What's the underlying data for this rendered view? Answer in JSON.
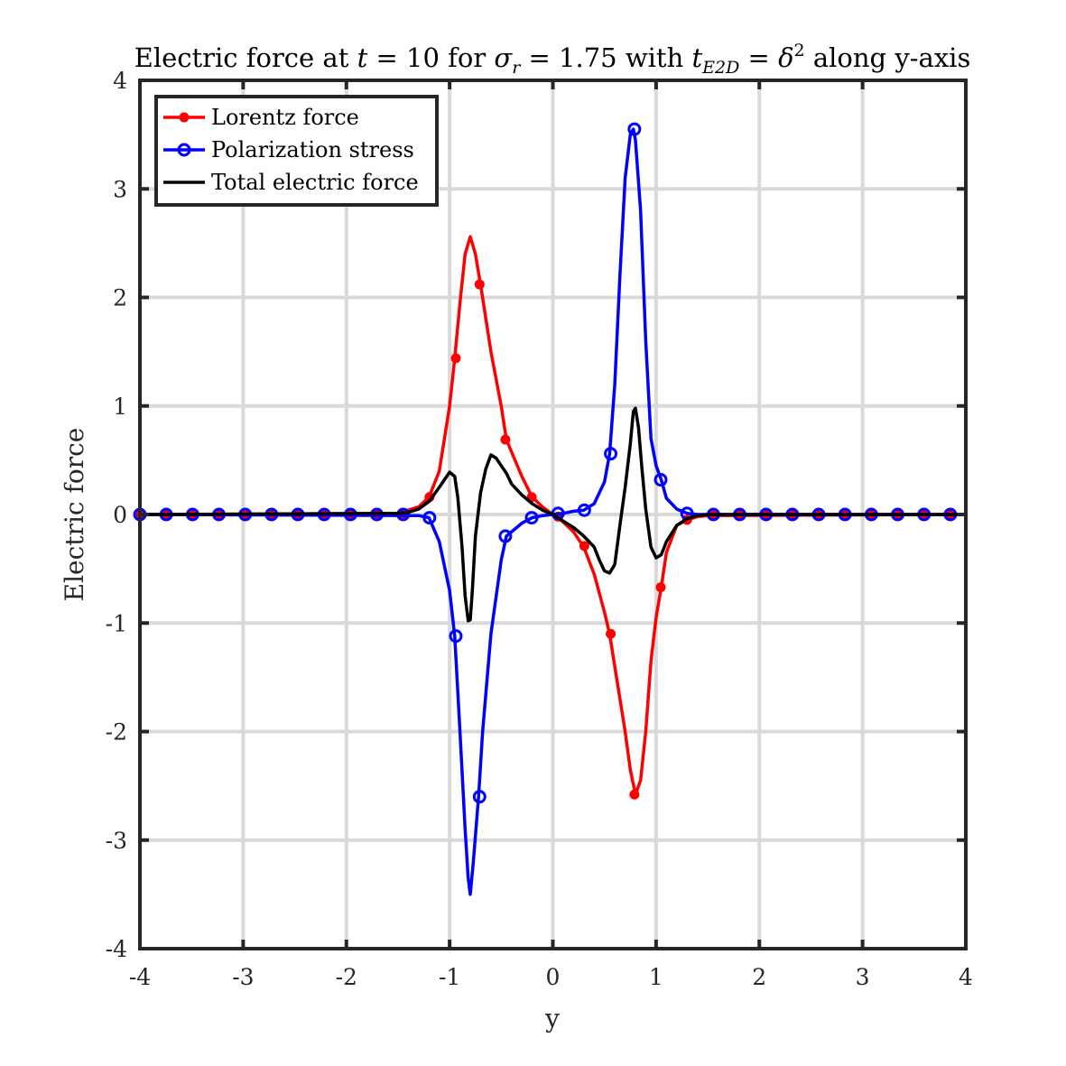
{
  "chart_data": {
    "type": "line",
    "title_parts": {
      "p1": "Electric force at ",
      "t": "t",
      "eq1": " = 10 for ",
      "sigma": "σ",
      "sigma_sub": "r",
      "eq2": " = 1.75 with ",
      "t2": "t",
      "t_sub": "E2D",
      "eq3": " = ",
      "delta": "δ",
      "delta_sup": "2",
      "p2": " along y-axis"
    },
    "xlabel": "y",
    "ylabel": "Electric force",
    "xlim": [
      -4,
      4
    ],
    "ylim": [
      -4,
      4
    ],
    "xticks": [
      -4,
      -3,
      -2,
      -1,
      0,
      1,
      2,
      3,
      4
    ],
    "yticks": [
      -4,
      -3,
      -2,
      -1,
      0,
      1,
      2,
      3,
      4
    ],
    "xtick_labels": [
      "-4",
      "-3",
      "-2",
      "-1",
      "0",
      "1",
      "2",
      "3",
      "4"
    ],
    "ytick_labels": [
      "-4",
      "-3",
      "-2",
      "-1",
      "0",
      "1",
      "2",
      "3",
      "4"
    ],
    "grid": true,
    "legend_position": "top-left",
    "series": [
      {
        "name": "Lorentz force",
        "color": "#ff0000",
        "marker": "dot",
        "x": [
          -4.0,
          -1.5,
          -1.3,
          -1.2,
          -1.1,
          -1.0,
          -0.95,
          -0.9,
          -0.85,
          -0.8,
          -0.75,
          -0.7,
          -0.6,
          -0.5,
          -0.45,
          -0.3,
          -0.2,
          -0.1,
          0.0,
          0.1,
          0.2,
          0.3,
          0.4,
          0.5,
          0.55,
          0.6,
          0.7,
          0.75,
          0.8,
          0.85,
          0.9,
          0.95,
          1.0,
          1.05,
          1.1,
          1.2,
          1.3,
          1.4,
          1.5,
          4.0
        ],
        "y": [
          0,
          0.01,
          0.07,
          0.16,
          0.4,
          1.0,
          1.44,
          1.95,
          2.4,
          2.56,
          2.4,
          2.12,
          1.5,
          1.0,
          0.69,
          0.35,
          0.16,
          0.07,
          0,
          -0.07,
          -0.16,
          -0.3,
          -0.55,
          -0.9,
          -1.1,
          -1.4,
          -2.0,
          -2.35,
          -2.58,
          -2.45,
          -2.0,
          -1.35,
          -0.95,
          -0.67,
          -0.35,
          -0.1,
          -0.05,
          -0.02,
          -0.01,
          0
        ],
        "marker_x": [
          -4.0,
          -3.745,
          -3.49,
          -3.235,
          -2.98,
          -2.725,
          -2.47,
          -2.215,
          -1.96,
          -1.705,
          -1.45,
          -1.195,
          -0.94,
          -0.71,
          -0.46,
          -0.205,
          0.05,
          0.305,
          0.56,
          0.79,
          1.045,
          1.3,
          1.555,
          1.81,
          2.065,
          2.32,
          2.575,
          2.83,
          3.085,
          3.34,
          3.595,
          3.85
        ],
        "marker_y": [
          0,
          0,
          0,
          0,
          0,
          0,
          0,
          0,
          0,
          0,
          0,
          0.16,
          1.44,
          2.12,
          0.69,
          0.16,
          -0.02,
          -0.29,
          -1.1,
          -2.58,
          -0.67,
          -0.05,
          0,
          0,
          0,
          0,
          0,
          0,
          0,
          0,
          0,
          0
        ]
      },
      {
        "name": "Polarization stress",
        "color": "#0000ff",
        "marker": "circle",
        "x": [
          -4.0,
          -1.3,
          -1.2,
          -1.1,
          -1.0,
          -0.95,
          -0.9,
          -0.85,
          -0.82,
          -0.8,
          -0.77,
          -0.72,
          -0.68,
          -0.6,
          -0.5,
          -0.45,
          -0.3,
          -0.2,
          -0.1,
          0.0,
          0.1,
          0.2,
          0.3,
          0.4,
          0.5,
          0.55,
          0.6,
          0.65,
          0.7,
          0.75,
          0.78,
          0.8,
          0.85,
          0.9,
          0.95,
          1.0,
          1.05,
          1.1,
          1.2,
          1.3,
          1.4,
          4.0
        ],
        "y": [
          0,
          -0.01,
          -0.03,
          -0.25,
          -0.7,
          -1.12,
          -2.0,
          -2.9,
          -3.35,
          -3.5,
          -3.2,
          -2.6,
          -2.0,
          -1.1,
          -0.42,
          -0.2,
          -0.08,
          -0.03,
          -0.01,
          0,
          0.01,
          0.03,
          0.04,
          0.1,
          0.3,
          0.56,
          1.2,
          2.2,
          3.1,
          3.5,
          3.55,
          3.45,
          2.8,
          1.6,
          0.7,
          0.45,
          0.32,
          0.15,
          0.05,
          0.01,
          0,
          0
        ],
        "marker_x": [
          -4.0,
          -3.745,
          -3.49,
          -3.235,
          -2.98,
          -2.725,
          -2.47,
          -2.215,
          -1.96,
          -1.705,
          -1.45,
          -1.195,
          -0.94,
          -0.71,
          -0.46,
          -0.205,
          0.05,
          0.305,
          0.56,
          0.79,
          1.045,
          1.3,
          1.555,
          1.81,
          2.065,
          2.32,
          2.575,
          2.83,
          3.085,
          3.34,
          3.595,
          3.85
        ],
        "marker_y": [
          0,
          0,
          0,
          0,
          0,
          0,
          0,
          0,
          0,
          0,
          0,
          -0.03,
          -1.12,
          -2.6,
          -0.2,
          -0.03,
          0.01,
          0.04,
          0.56,
          3.55,
          0.32,
          0.01,
          0,
          0,
          0,
          0,
          0,
          0,
          0,
          0,
          0,
          0
        ]
      },
      {
        "name": "Total electric force",
        "color": "#000000",
        "marker": "none",
        "x": [
          -4.0,
          -1.5,
          -1.4,
          -1.3,
          -1.2,
          -1.1,
          -1.0,
          -0.95,
          -0.92,
          -0.88,
          -0.85,
          -0.82,
          -0.8,
          -0.78,
          -0.75,
          -0.7,
          -0.65,
          -0.6,
          -0.55,
          -0.5,
          -0.45,
          -0.4,
          -0.3,
          -0.2,
          -0.1,
          0.0,
          0.1,
          0.2,
          0.3,
          0.4,
          0.45,
          0.5,
          0.55,
          0.6,
          0.65,
          0.7,
          0.75,
          0.78,
          0.8,
          0.83,
          0.86,
          0.9,
          0.95,
          1.0,
          1.05,
          1.1,
          1.2,
          1.3,
          1.4,
          1.5,
          4.0
        ],
        "y": [
          0,
          0.01,
          0.02,
          0.05,
          0.12,
          0.25,
          0.39,
          0.35,
          0.15,
          -0.3,
          -0.75,
          -0.98,
          -0.97,
          -0.7,
          -0.2,
          0.2,
          0.42,
          0.55,
          0.52,
          0.45,
          0.38,
          0.28,
          0.18,
          0.1,
          0.04,
          0,
          -0.06,
          -0.12,
          -0.2,
          -0.3,
          -0.42,
          -0.52,
          -0.54,
          -0.46,
          -0.1,
          0.25,
          0.65,
          0.95,
          0.98,
          0.8,
          0.45,
          0.05,
          -0.3,
          -0.4,
          -0.37,
          -0.25,
          -0.1,
          -0.04,
          -0.01,
          0,
          0
        ]
      }
    ]
  }
}
